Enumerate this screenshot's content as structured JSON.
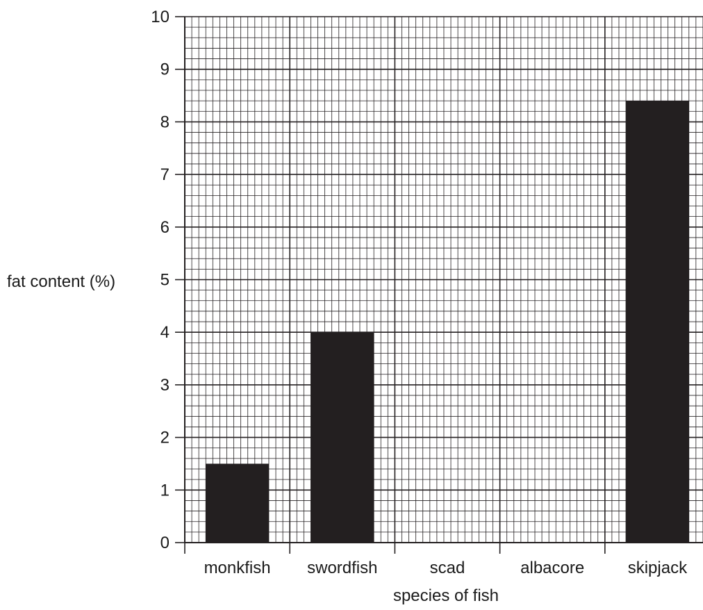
{
  "chart_data": {
    "type": "bar",
    "title": "",
    "xlabel": "species of fish",
    "ylabel": "fat content (%)",
    "categories": [
      "monkfish",
      "swordfish",
      "scad",
      "albacore",
      "skipjack"
    ],
    "values": [
      1.5,
      4.0,
      null,
      null,
      8.4
    ],
    "ylim": [
      0,
      10
    ],
    "yticks": [
      "0",
      "1",
      "2",
      "3",
      "4",
      "5",
      "6",
      "7",
      "8",
      "9",
      "10"
    ],
    "grid": "graph-paper (0.2 minor, 1 major)",
    "bar_color": "#231f20",
    "grid_color": "#231f20"
  }
}
